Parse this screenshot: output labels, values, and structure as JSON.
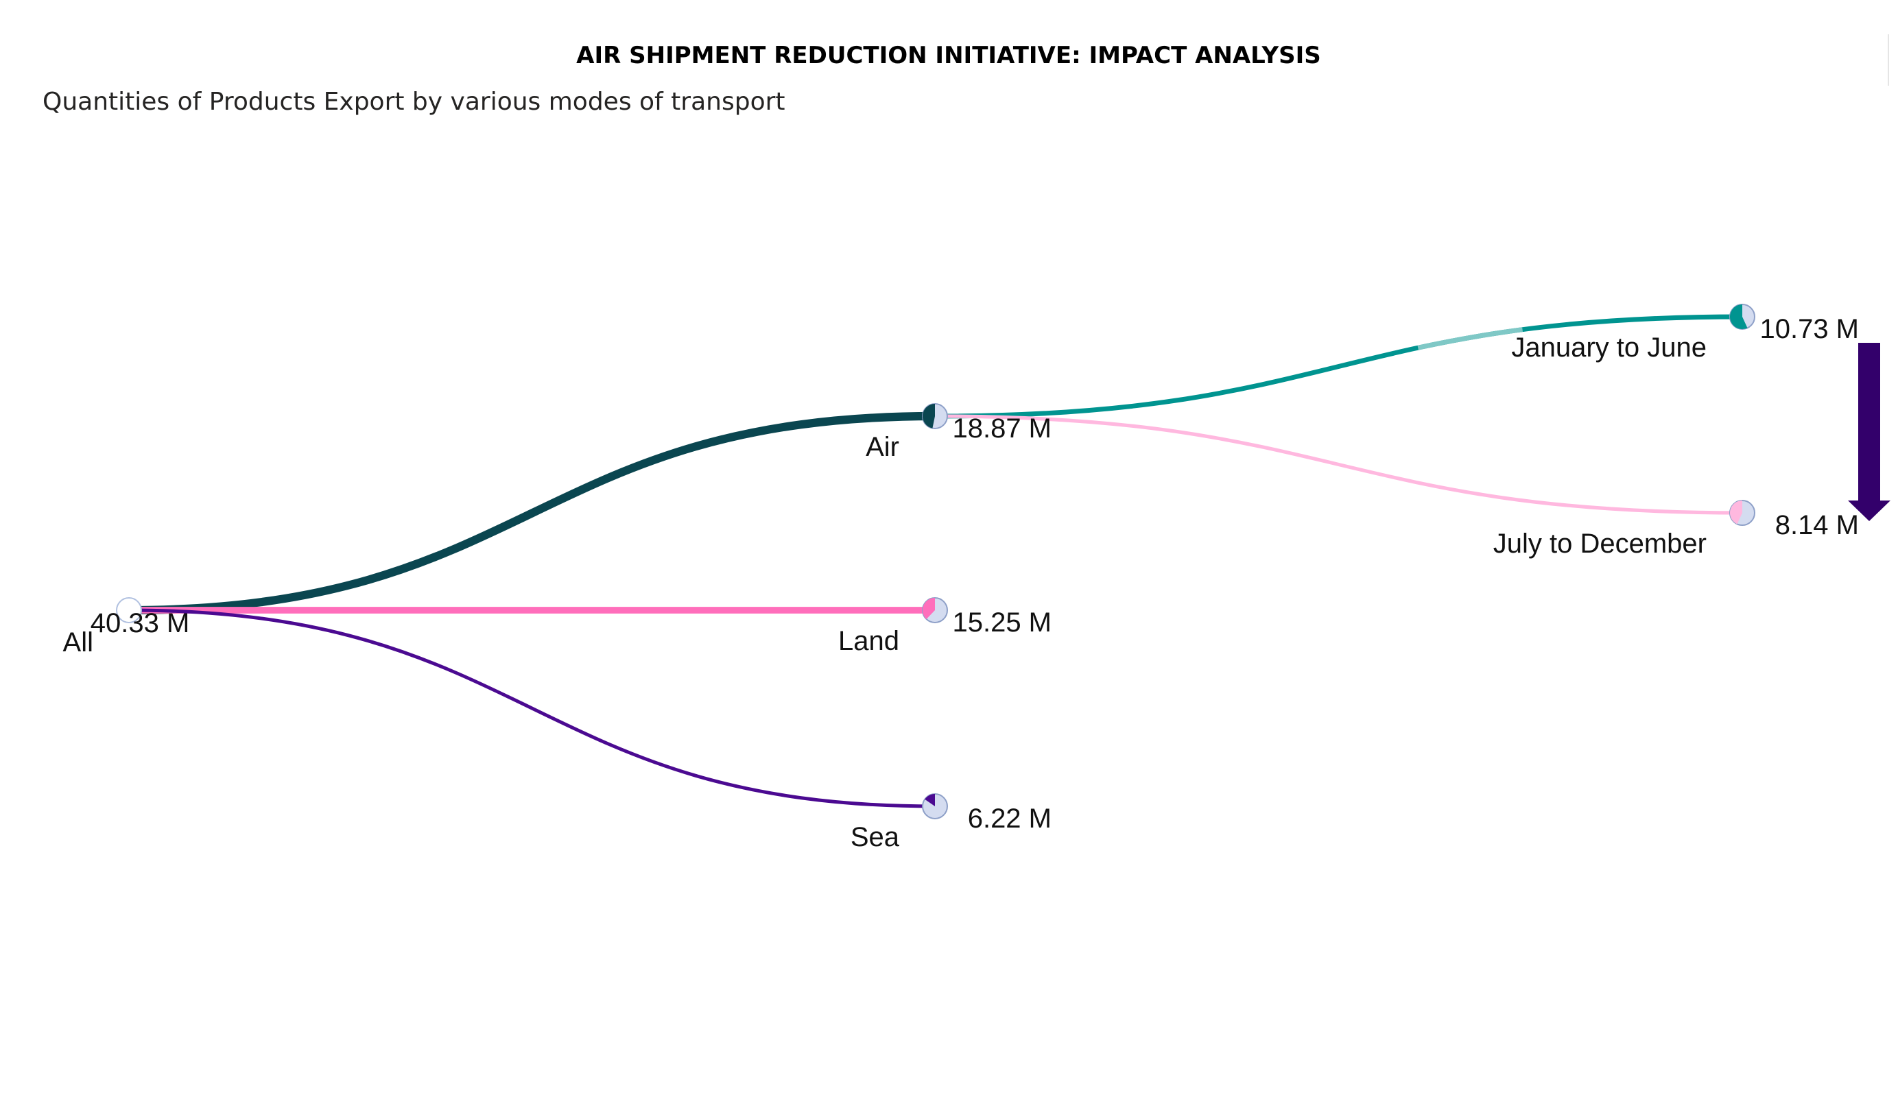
{
  "chart_data": {
    "type": "decomposition-tree",
    "title": "AIR SHIPMENT REDUCTION INITIATIVE: IMPACT ANALYSIS",
    "subtitle": "Quantities of Products Export by various modes of transport",
    "root": {
      "id": "all",
      "label": "All",
      "value": 40.33,
      "value_label": "40.33 M",
      "color": "#b7c4e0"
    },
    "level1": [
      {
        "id": "air",
        "label": "Air",
        "value": 18.87,
        "value_label": "18.87 M",
        "color": "#0a4650"
      },
      {
        "id": "land",
        "label": "Land",
        "value": 15.25,
        "value_label": "15.25 M",
        "color": "#ff6ebb"
      },
      {
        "id": "sea",
        "label": "Sea",
        "value": 6.22,
        "value_label": "6.22 M",
        "color": "#4b0a91"
      }
    ],
    "level2_parent": "air",
    "level2": [
      {
        "id": "jan-jun",
        "label": "January to June",
        "value": 10.73,
        "value_label": "10.73 M",
        "color": "#009490",
        "highlight_color": "#7fc8c6"
      },
      {
        "id": "jul-dec",
        "label": "July to December",
        "value": 8.14,
        "value_label": "8.14 M",
        "color": "#ffb8df"
      }
    ],
    "indicator": {
      "direction": "down",
      "color": "#33006b"
    },
    "pie_secondary_color": "#d4dcf0",
    "pie_accent_color": "#b0c0e0"
  }
}
